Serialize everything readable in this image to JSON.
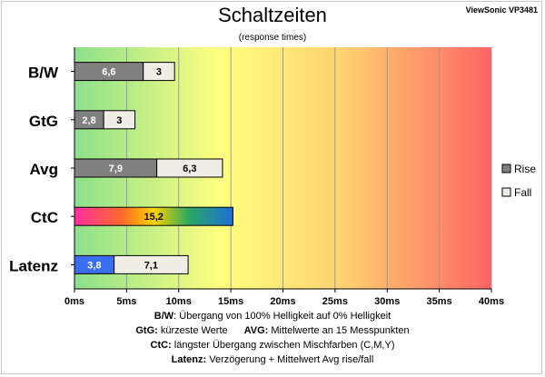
{
  "header": {
    "brand": "ViewSonic VP3481",
    "title": "Schaltzeiten",
    "subtitle": "(response times)"
  },
  "chart_data": {
    "type": "bar",
    "orientation": "horizontal",
    "stacked": true,
    "categories": [
      "B/W",
      "GtG",
      "Avg",
      "CtC",
      "Latenz"
    ],
    "series": [
      {
        "name": "Rise",
        "values": [
          6.6,
          2.8,
          7.9,
          null,
          3.8
        ]
      },
      {
        "name": "Fall",
        "values": [
          3,
          3,
          6.3,
          null,
          7.1
        ]
      },
      {
        "name": "",
        "values": [
          null,
          null,
          null,
          15.2,
          null
        ]
      }
    ],
    "tick_labels": [
      "0ms",
      "5ms",
      "10ms",
      "15ms",
      "20ms",
      "25ms",
      "30ms",
      "35ms",
      "40ms"
    ],
    "xlim": [
      0,
      40
    ],
    "grid": true,
    "legend_position": "right",
    "colors": {
      "rise": "#808080",
      "fall": "#f0ede4",
      "ctc_gradient": [
        "#ff2ea0",
        "#ff5a3c",
        "#ffd400",
        "#7fd400",
        "#1a9a8a",
        "#1e6fd8"
      ],
      "latenz_rise": "#3a6ef0",
      "background_gradient": [
        "#8ce08c",
        "#ffff80",
        "#ff6060"
      ]
    }
  },
  "footer": {
    "line1_label": "B/W",
    "line1_text": ":  Übergang von 100% Helligkeit auf 0% Helligkeit",
    "line2_label_a": "GtG:",
    "line2_text_a": " kürzeste  Werte",
    "line2_label_b": "AVG:",
    "line2_text_b": " Mittelwerte  an 15 Messpunkten",
    "line3_label": "CtC:",
    "line3_text": " längster Übergang  zwischen Mischfarben (C,M,Y)",
    "line4_label": "Latenz:",
    "line4_text": " Verzögerung  + Mittelwert  Avg rise/fall"
  }
}
